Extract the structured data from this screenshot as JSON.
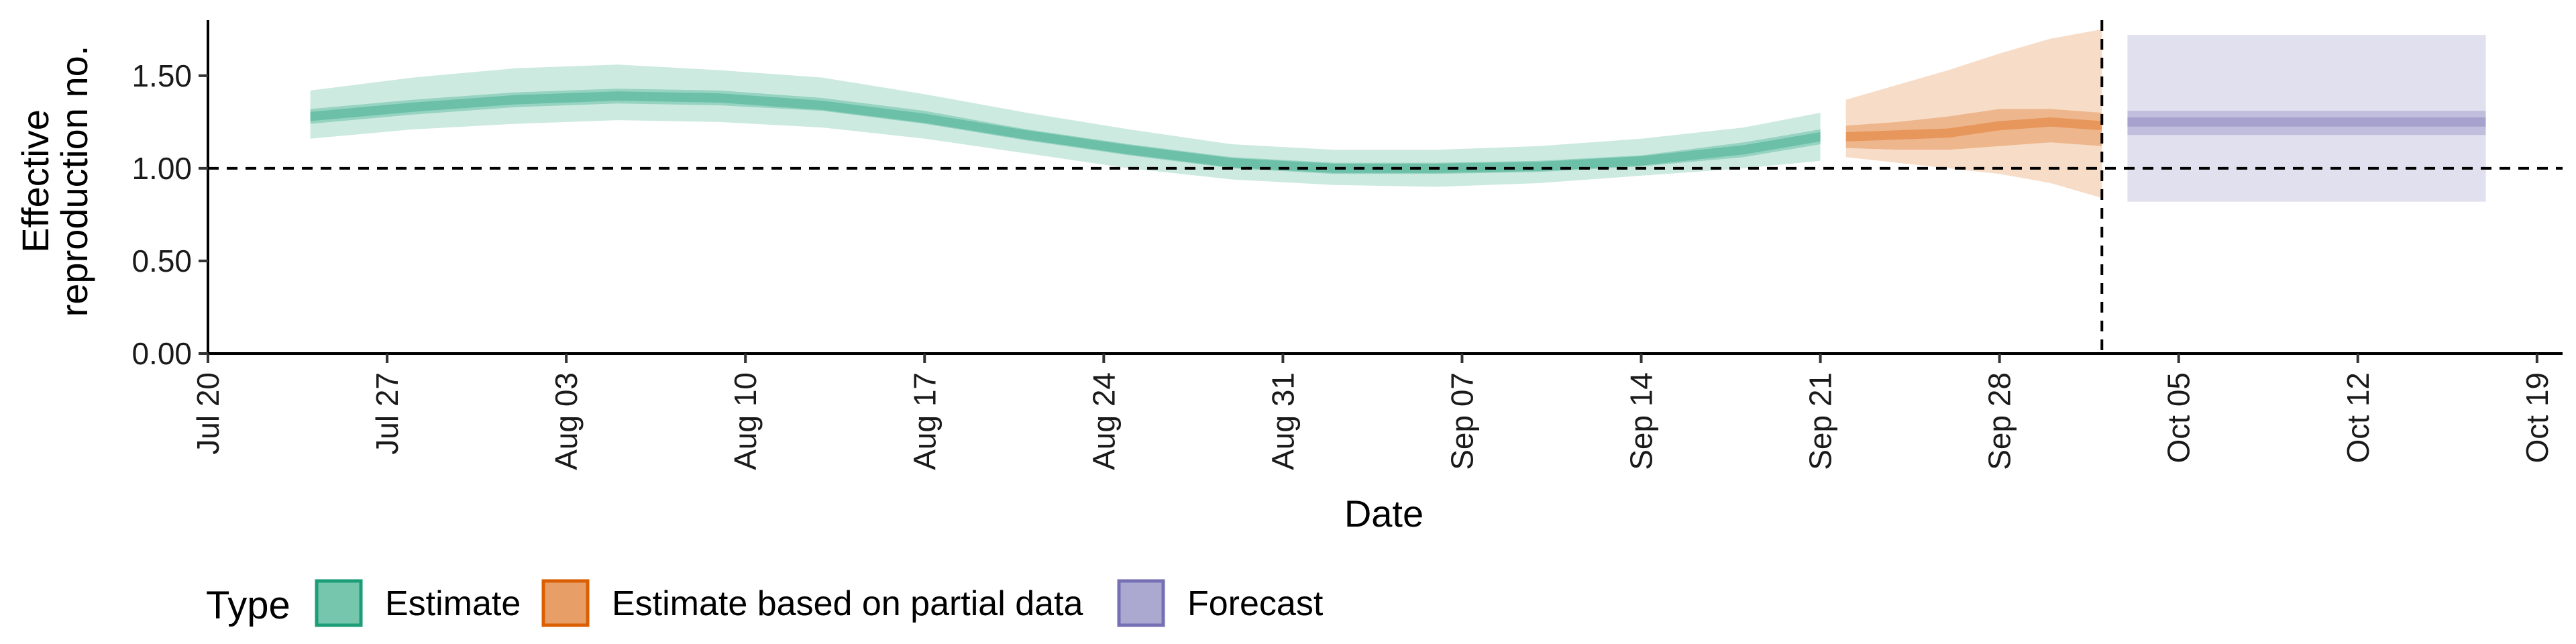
{
  "chart_data": {
    "type": "area",
    "xlabel": "Date",
    "ylabel": [
      "Effective",
      "reproduction no."
    ],
    "ylim": [
      0,
      1.8
    ],
    "y_ticks": [
      0,
      0.5,
      1.0,
      1.5
    ],
    "y_tick_labels": [
      "0.00",
      "0.50",
      "1.00",
      "1.50"
    ],
    "x_range": [
      "2020-07-20",
      "2020-10-20"
    ],
    "x_ticks": [
      "2020-07-20",
      "2020-07-27",
      "2020-08-03",
      "2020-08-10",
      "2020-08-17",
      "2020-08-24",
      "2020-08-31",
      "2020-09-07",
      "2020-09-14",
      "2020-09-21",
      "2020-09-28",
      "2020-10-05",
      "2020-10-12",
      "2020-10-19"
    ],
    "x_tick_labels": [
      "Jul 20",
      "Jul 27",
      "Aug 03",
      "Aug 10",
      "Aug 17",
      "Aug 24",
      "Aug 31",
      "Sep 07",
      "Sep 14",
      "Sep 21",
      "Sep 28",
      "Oct 05",
      "Oct 12",
      "Oct 19"
    ],
    "reference_lines": [
      {
        "axis": "y",
        "value": 1.0,
        "style": "dashed"
      },
      {
        "axis": "x",
        "value": "2020-10-02",
        "style": "dashed"
      }
    ],
    "grid": false,
    "legend": {
      "title": "Type",
      "position": "bottom-left"
    },
    "series": [
      {
        "name": "Estimate",
        "color": "#1b9e77",
        "x": [
          "2020-07-24",
          "2020-07-28",
          "2020-08-01",
          "2020-08-05",
          "2020-08-09",
          "2020-08-13",
          "2020-08-17",
          "2020-08-21",
          "2020-08-25",
          "2020-08-29",
          "2020-09-02",
          "2020-09-06",
          "2020-09-10",
          "2020-09-14",
          "2020-09-18",
          "2020-09-21"
        ],
        "median": [
          1.28,
          1.33,
          1.37,
          1.39,
          1.38,
          1.34,
          1.27,
          1.18,
          1.1,
          1.03,
          1.0,
          1.0,
          1.01,
          1.04,
          1.1,
          1.17
        ],
        "inner_low": [
          1.24,
          1.29,
          1.33,
          1.35,
          1.34,
          1.31,
          1.24,
          1.15,
          1.07,
          1.0,
          0.97,
          0.97,
          0.98,
          1.01,
          1.06,
          1.13
        ],
        "inner_high": [
          1.32,
          1.37,
          1.41,
          1.43,
          1.42,
          1.38,
          1.31,
          1.21,
          1.13,
          1.06,
          1.03,
          1.03,
          1.04,
          1.07,
          1.14,
          1.21
        ],
        "outer_low": [
          1.16,
          1.21,
          1.24,
          1.26,
          1.25,
          1.22,
          1.16,
          1.08,
          1.0,
          0.94,
          0.91,
          0.9,
          0.92,
          0.96,
          1.0,
          1.04
        ],
        "outer_high": [
          1.42,
          1.49,
          1.54,
          1.56,
          1.53,
          1.49,
          1.4,
          1.3,
          1.21,
          1.13,
          1.1,
          1.1,
          1.12,
          1.16,
          1.22,
          1.3
        ]
      },
      {
        "name": "Estimate based on partial data",
        "color": "#d95f02",
        "x": [
          "2020-09-22",
          "2020-09-24",
          "2020-09-26",
          "2020-09-28",
          "2020-09-30",
          "2020-10-02"
        ],
        "median": [
          1.17,
          1.18,
          1.19,
          1.23,
          1.25,
          1.23
        ],
        "inner_low": [
          1.11,
          1.1,
          1.1,
          1.12,
          1.14,
          1.12
        ],
        "inner_high": [
          1.23,
          1.25,
          1.28,
          1.32,
          1.32,
          1.3
        ],
        "outer_low": [
          1.06,
          1.03,
          1.0,
          0.97,
          0.92,
          0.84
        ],
        "outer_high": [
          1.37,
          1.45,
          1.53,
          1.62,
          1.7,
          1.75
        ]
      },
      {
        "name": "Forecast",
        "color": "#7570b3",
        "x": [
          "2020-10-03",
          "2020-10-17"
        ],
        "median": [
          1.25,
          1.25
        ],
        "inner_low": [
          1.18,
          1.18
        ],
        "inner_high": [
          1.31,
          1.31
        ],
        "outer_low": [
          0.82,
          0.82
        ],
        "outer_high": [
          1.72,
          1.72
        ]
      }
    ]
  }
}
